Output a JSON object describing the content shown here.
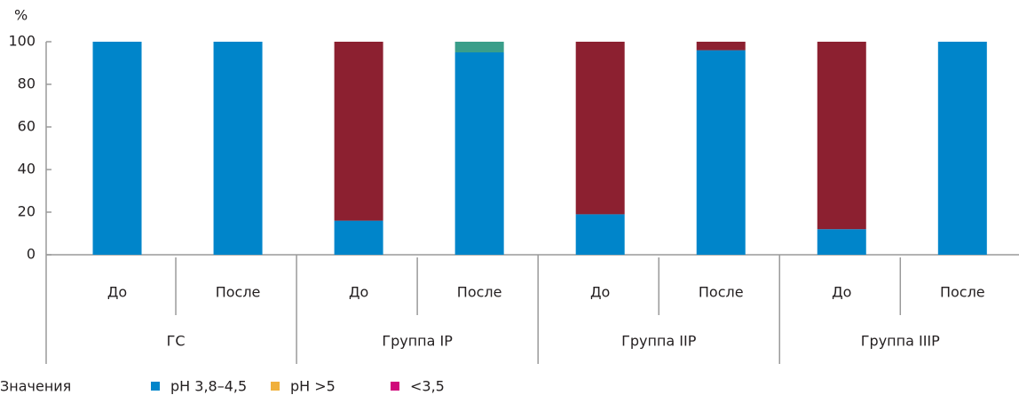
{
  "chart_data": {
    "type": "stacked_bar",
    "y_label": "%",
    "categories": [
      "До",
      "После",
      "До",
      "После",
      "До",
      "После",
      "До",
      "После"
    ],
    "groups": [
      "ГС",
      "Группа IP",
      "Группа IIP",
      "Группа IIIP"
    ],
    "legend_title": "Значения",
    "series": [
      {
        "name": "pH 3,8–4,5",
        "color": "#0085ca",
        "legend_color": "#0085ca",
        "values": [
          100,
          100,
          16,
          95,
          19,
          96,
          12,
          100
        ]
      },
      {
        "name": "pH >5",
        "color": "#8c2030",
        "legend_color": "#f0b03c",
        "values": [
          0,
          0,
          84,
          0,
          81,
          4,
          88,
          0
        ]
      },
      {
        "name": "<3,5",
        "color": "#3a9e8a",
        "legend_color": "#d0077a",
        "values": [
          0,
          0,
          0,
          5,
          0,
          0,
          0,
          0
        ]
      }
    ],
    "ylim": [
      0,
      100
    ],
    "yticks": [
      0,
      20,
      40,
      60,
      80,
      100
    ]
  }
}
